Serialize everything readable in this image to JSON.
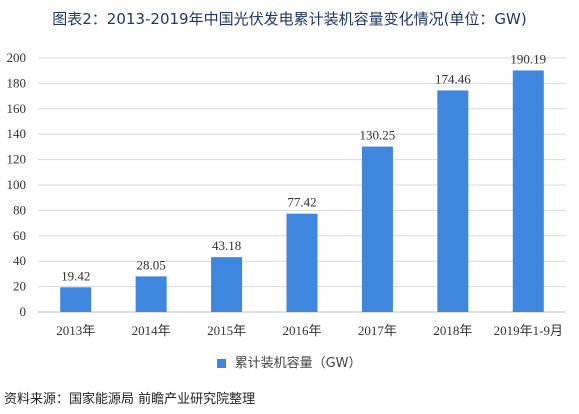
{
  "title": "图表2：2013-2019年中国光伏发电累计装机容量变化情况(单位：GW)",
  "source": "资料来源：国家能源局 前瞻产业研究院整理",
  "colors": {
    "bar": "#3e86de",
    "grid": "#d9d9d9",
    "axis": "#bfbfbf"
  },
  "chart_data": {
    "type": "bar",
    "categories": [
      "2013年",
      "2014年",
      "2015年",
      "2016年",
      "2017年",
      "2018年",
      "2019年1-9月"
    ],
    "series": [
      {
        "name": "累计装机容量（GW）",
        "values": [
          19.42,
          28.05,
          43.18,
          77.42,
          130.25,
          174.46,
          190.19
        ]
      }
    ],
    "data_labels": [
      "19.42",
      "28.05",
      "43.18",
      "77.42",
      "130.25",
      "174.46",
      "190.19"
    ],
    "ylim": [
      0,
      200
    ],
    "yticks": [
      0,
      20,
      40,
      60,
      80,
      100,
      120,
      140,
      160,
      180,
      200
    ],
    "grid": true,
    "legend": "bottom"
  }
}
